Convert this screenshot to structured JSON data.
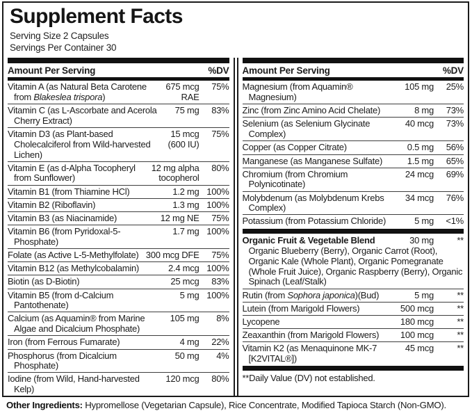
{
  "panel": {
    "title": "Supplement Facts",
    "serving_size": "Serving Size 2 Capsules",
    "servings_per_container": "Servings Per Container 30",
    "header": {
      "amount_label": "Amount Per Serving",
      "dv_label": "%DV"
    },
    "left_column": {
      "rows": [
        {
          "name": "Vitamin A (as Natural Beta Carotene from *Blakeslea trispora*)",
          "amount": "675 mcg RAE",
          "dv": "75%"
        },
        {
          "name": "Vitamin C (as L-Ascorbate and Acerola Cherry Extract)",
          "amount": "75 mg",
          "dv": "83%"
        },
        {
          "name": "Vitamin D3 (as Plant-based Cholecalciferol from Wild-harvested Lichen)",
          "amount": "15 mcg (600 IU)",
          "dv": "75%"
        },
        {
          "name": "Vitamin E (as d-Alpha Tocopheryl from Sunflower)",
          "amount": "12 mg alpha tocopherol",
          "dv": "80%"
        },
        {
          "name": "Vitamin B1 (from Thiamine HCl)",
          "amount": "1.2 mg",
          "dv": "100%"
        },
        {
          "name": "Vitamin B2 (Riboflavin)",
          "amount": "1.3 mg",
          "dv": "100%"
        },
        {
          "name": "Vitamin B3 (as Niacinamide)",
          "amount": "12 mg NE",
          "dv": "75%"
        },
        {
          "name": "Vitamin B6 (from Pyridoxal-5-Phosphate)",
          "amount": "1.7 mg",
          "dv": "100%"
        },
        {
          "name": "Folate (as Active L-5-Methylfolate)",
          "amount": "300 mcg DFE",
          "dv": "75%"
        },
        {
          "name": "Vitamin B12 (as Methylcobalamin)",
          "amount": "2.4 mcg",
          "dv": "100%"
        },
        {
          "name": "Biotin (as D-Biotin)",
          "amount": "25 mcg",
          "dv": "83%"
        },
        {
          "name": "Vitamin B5 (from d-Calcium Pantothenate)",
          "amount": "5 mg",
          "dv": "100%"
        },
        {
          "name": "Calcium (as Aquamin® from Marine Algae and Dicalcium Phosphate)",
          "amount": "105 mg",
          "dv": "8%"
        },
        {
          "name": "Iron (from Ferrous Fumarate)",
          "amount": "4 mg",
          "dv": "22%"
        },
        {
          "name": "Phosphorus (from Dicalcium Phosphate)",
          "amount": "50 mg",
          "dv": "4%"
        },
        {
          "name": "Iodine (from Wild, Hand-harvested Kelp)",
          "amount": "120 mcg",
          "dv": "80%"
        }
      ]
    },
    "right_column": {
      "rows": [
        {
          "name": "Magnesium (from Aquamin® Magnesium)",
          "amount": "105 mg",
          "dv": "25%"
        },
        {
          "name": "Zinc (from Zinc Amino Acid Chelate)",
          "amount": "8 mg",
          "dv": "73%"
        },
        {
          "name": "Selenium (as Selenium Glycinate Complex)",
          "amount": "40 mcg",
          "dv": "73%"
        },
        {
          "name": "Copper (as Copper Citrate)",
          "amount": "0.5 mg",
          "dv": "56%"
        },
        {
          "name": "Manganese (as Manganese Sulfate)",
          "amount": "1.5 mg",
          "dv": "65%"
        },
        {
          "name": "Chromium (from Chromium Polynicotinate)",
          "amount": "24 mcg",
          "dv": "69%"
        },
        {
          "name": "Molybdenum (as Molybdenum Krebs Complex)",
          "amount": "34 mcg",
          "dv": "76%"
        },
        {
          "name": "Potassium (from Potassium Chloride)",
          "amount": "5 mg",
          "dv": "<1%"
        },
        {
          "divider": true
        },
        {
          "name": "Organic Fruit & Vegetable Blend",
          "bold": true,
          "amount": "30 mg",
          "dv": "**",
          "sub": "Organic Blueberry (Berry), Organic Carrot (Root), Organic Kale (Whole Plant), Organic Pomegranate (Whole Fruit Juice), Organic Raspberry (Berry), Organic Spinach (Leaf/Stalk)"
        },
        {
          "name": "Rutin (from *Sophora japonica*)(Bud)",
          "amount": "5 mg",
          "dv": "**"
        },
        {
          "name": "Lutein (from Marigold Flowers)",
          "amount": "500 mcg",
          "dv": "**"
        },
        {
          "name": "Lycopene",
          "amount": "180 mcg",
          "dv": "**"
        },
        {
          "name": "Zeaxanthin (from Marigold Flowers)",
          "amount": "100 mcg",
          "dv": "**"
        },
        {
          "name": "Vitamin K2 (as Menaquinone MK-7 [K2VITAL®])",
          "amount": "45 mcg",
          "dv": "**"
        },
        {
          "divider": true
        },
        {
          "note": "**Daily Value (DV) not established."
        }
      ]
    }
  },
  "footer": {
    "label": "Other Ingredients:",
    "text": "Hypromellose (Vegetarian Capsule), Rice Concentrate, Modified Tapioca Starch (Non-GMO)."
  },
  "colors": {
    "ink": "#1a1a1a",
    "bar": "#111111",
    "background": "#ffffff"
  }
}
